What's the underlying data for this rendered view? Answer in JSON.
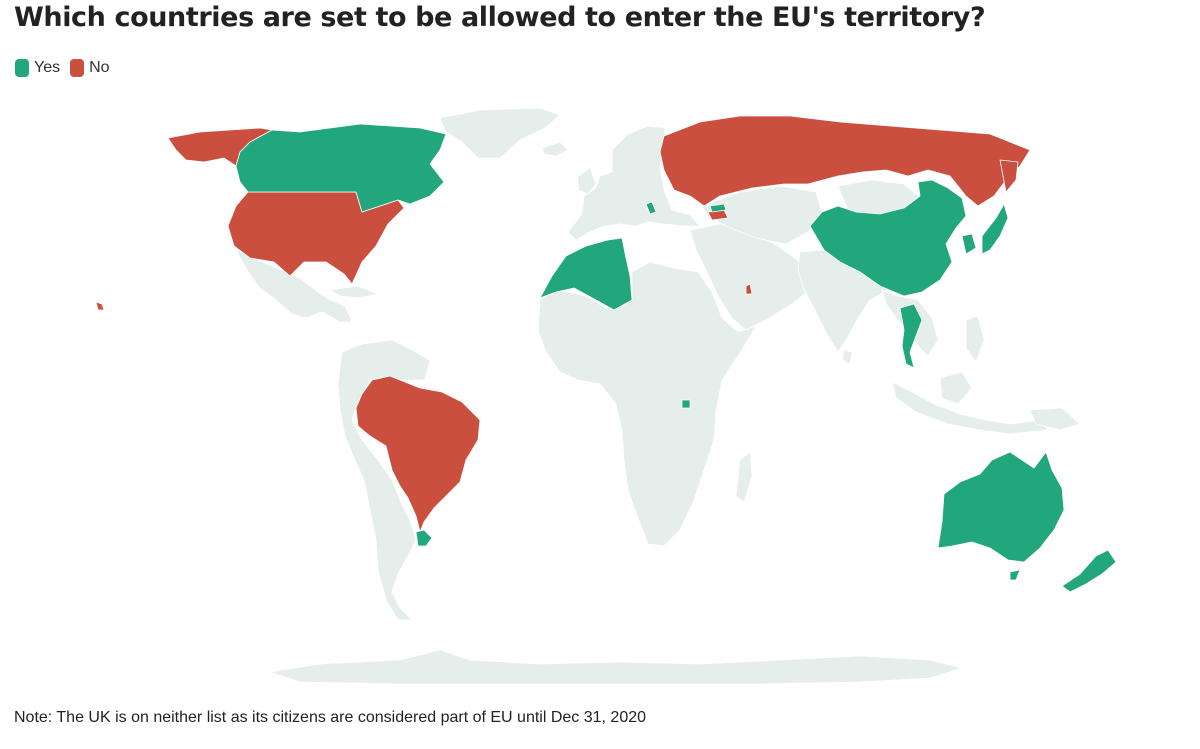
{
  "title": "Which countries are set to be allowed to enter the EU's territory?",
  "legend": [
    {
      "label": "Yes",
      "color": "#22a67c"
    },
    {
      "label": "No",
      "color": "#cb4f3f"
    }
  ],
  "colors": {
    "yes": "#22a67c",
    "no": "#cb4f3f",
    "other": "#e5eeea",
    "border": "#ffffff"
  },
  "map": {
    "allowed": [
      "Canada",
      "Algeria",
      "Morocco",
      "Tunisia",
      "Georgia",
      "Montenegro",
      "China",
      "Japan",
      "South Korea",
      "Thailand",
      "Rwanda",
      "Uruguay",
      "Australia",
      "New Zealand"
    ],
    "not_allowed": [
      "United States",
      "Brazil",
      "Russia",
      "Qatar",
      "Alaska"
    ]
  },
  "note": "Note: The UK is on neither list as its citizens are considered part of EU until Dec 31, 2020"
}
